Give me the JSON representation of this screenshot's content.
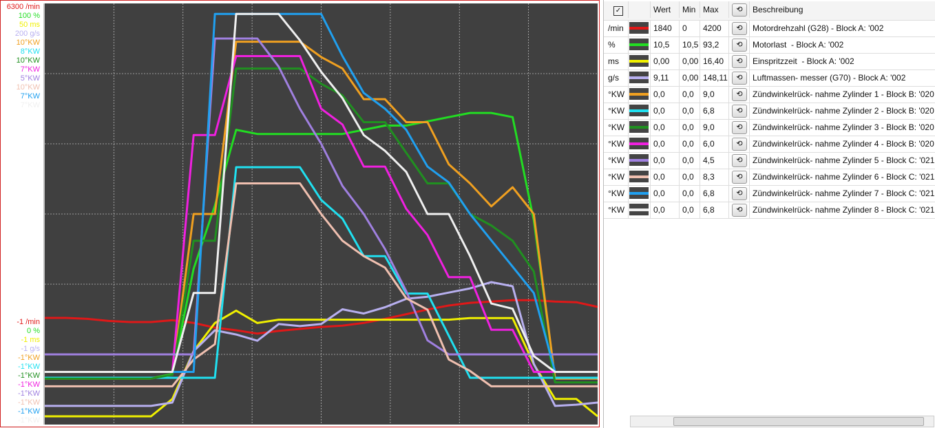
{
  "chart_data": {
    "type": "line",
    "grid": true,
    "series": [
      {
        "name": "Motordrehzahl (G28) - Block A: '002",
        "color": "#e01818",
        "ylim": [
          {
            "value": -1,
            "label": "-1 /min"
          },
          {
            "value": 6300,
            "label": "6300 /min"
          }
        ],
        "values": [
          1595,
          1595,
          1580,
          1550,
          1533,
          1533,
          1560,
          1520,
          1450,
          1410,
          1360,
          1400,
          1430,
          1460,
          1480,
          1520,
          1580,
          1650,
          1720,
          1780,
          1820,
          1840,
          1860,
          1860,
          1840,
          1830,
          1760
        ]
      },
      {
        "name": "Motorlast  - Block A: '002",
        "color": "#22dd22",
        "ylim": [
          {
            "value": 0,
            "label": "0 %"
          },
          {
            "value": 100,
            "label": "100 %"
          }
        ],
        "values": [
          11,
          11,
          11,
          11,
          11,
          11,
          12,
          37,
          52,
          70,
          69,
          69,
          69,
          69,
          69,
          70,
          71,
          71,
          72,
          73,
          74,
          74,
          73,
          48.5,
          11,
          11,
          11
        ]
      },
      {
        "name": "Einspritzzeit  - Block A: '002",
        "color": "#f0f000",
        "ylim": [
          {
            "value": -1,
            "label": "-1 ms"
          },
          {
            "value": 50,
            "label": "50 ms"
          }
        ],
        "values": [
          0,
          0,
          0,
          0,
          0,
          0,
          2.1,
          7.9,
          11.3,
          12.8,
          11.3,
          11.7,
          11.7,
          11.7,
          11.7,
          11.7,
          11.7,
          11.7,
          11.7,
          11.7,
          11.9,
          11.9,
          11.9,
          6.3,
          2.1,
          2.1,
          0
        ]
      },
      {
        "name": "Luftmassen- messer (G70) - Block A: '002",
        "color": "#b8b0f0",
        "ylim": [
          {
            "value": -1,
            "label": "-1 g/s"
          },
          {
            "value": 200,
            "label": "200 g/s"
          }
        ],
        "values": [
          7.9,
          7.9,
          7.9,
          7.9,
          7.9,
          7.9,
          9.5,
          34,
          44,
          42,
          39,
          47,
          46,
          47,
          54,
          52,
          55,
          59,
          60,
          62,
          64,
          67,
          65,
          28,
          7.9,
          8.5,
          9.5
        ]
      },
      {
        "name": "Zündwinkelrück- nahme Zylinder 1 - Block B: '020",
        "color": "#f0a020",
        "ylim": [
          {
            "value": -1,
            "label": "-1°KW"
          },
          {
            "value": 10,
            "label": "10°KW"
          }
        ],
        "values": [
          0.2,
          0.2,
          0.2,
          0.2,
          0.2,
          0.2,
          0.3,
          4.5,
          4.5,
          9,
          9,
          9,
          9,
          8.6,
          8.3,
          7.5,
          7.5,
          6.9,
          6.9,
          5.8,
          5.3,
          4.7,
          5.2,
          4.5,
          0.2,
          0.2,
          0.2
        ]
      },
      {
        "name": "Zündwinkelrück- nahme Zylinder 2 - Block B: '020",
        "color": "#20e0f0",
        "ylim": [
          {
            "value": -1,
            "label": "-1°KW"
          },
          {
            "value": 8,
            "label": "8°KW"
          }
        ],
        "values": [
          0,
          0,
          0,
          0,
          0,
          0,
          0,
          0,
          0,
          4.5,
          4.5,
          4.5,
          4.5,
          3.8,
          3.4,
          2.6,
          2.6,
          1.8,
          1.8,
          0.9,
          0,
          0,
          0,
          0,
          0,
          0,
          0
        ]
      },
      {
        "name": "Zündwinkelrück- nahme Zylinder 3 - Block B: '020",
        "color": "#209020",
        "ylim": [
          {
            "value": -1,
            "label": "-1°KW"
          },
          {
            "value": 10,
            "label": "10°KW"
          }
        ],
        "values": [
          0.2,
          0.2,
          0.2,
          0.2,
          0.2,
          0.2,
          0.3,
          3.8,
          3.8,
          8.3,
          8.3,
          8.3,
          8.3,
          7.9,
          7.6,
          6.9,
          6.9,
          6.1,
          5.3,
          5.3,
          4.5,
          4.2,
          3.8,
          3,
          0.1,
          0.1,
          0.1
        ]
      },
      {
        "name": "Zündwinkelrück- nahme Zylinder 4 - Block B: '020",
        "color": "#f020e0",
        "ylim": [
          {
            "value": -1,
            "label": "-1°KW"
          },
          {
            "value": 7,
            "label": "7°KW"
          }
        ],
        "values": [
          0,
          0,
          0,
          0,
          0,
          0,
          0,
          4.5,
          4.5,
          6,
          6,
          6,
          6,
          5,
          4.7,
          3.9,
          3.9,
          3.1,
          2.6,
          1.8,
          1.8,
          0.8,
          0.8,
          0,
          0,
          0,
          0
        ]
      },
      {
        "name": "Zündwinkelrück- nahme Zylinder 5 - Block C: '021",
        "color": "#a080e0",
        "ylim": [
          {
            "value": -1,
            "label": "-1°KW"
          },
          {
            "value": 5,
            "label": "5°KW"
          }
        ],
        "values": [
          0,
          0,
          0,
          0,
          0,
          0,
          0,
          0,
          4.5,
          4.5,
          4.5,
          4.1,
          3.5,
          3,
          2.4,
          2,
          1.5,
          0.9,
          0.2,
          0,
          0,
          0,
          0,
          0,
          0,
          0,
          0
        ]
      },
      {
        "name": "Zündwinkelrück- nahme Zylinder 6 - Block C: '021",
        "color": "#f0c0b0",
        "ylim": [
          {
            "value": -1,
            "label": "-1°KW"
          },
          {
            "value": 10,
            "label": "10°KW"
          }
        ],
        "values": [
          0,
          0,
          0,
          0,
          0,
          0,
          0,
          0.7,
          1.1,
          5.3,
          5.3,
          5.3,
          5.3,
          4.5,
          3.8,
          3.4,
          3.1,
          2.3,
          2,
          0.7,
          0.4,
          0,
          0,
          0,
          0,
          0,
          0
        ]
      },
      {
        "name": "Zündwinkelrück- nahme Zylinder 7 - Block C: '021",
        "color": "#20a0f0",
        "ylim": [
          {
            "value": -1,
            "label": "-1°KW"
          },
          {
            "value": 7,
            "label": "7°KW"
          }
        ],
        "values": [
          0,
          0,
          0,
          0,
          0,
          0,
          0,
          0,
          6.8,
          6.8,
          6.8,
          6.8,
          6.8,
          6.8,
          6,
          5.3,
          5,
          4.6,
          3.9,
          3.6,
          3,
          2.5,
          2,
          1.5,
          0,
          0,
          0
        ]
      },
      {
        "name": "Zündwinkelrück- nahme Zylinder 8 - Block C: '021",
        "color": "#f0f0f0",
        "ylim": [
          {
            "value": -1,
            "label": "-1°KW"
          },
          {
            "value": 7,
            "label": "7°KW"
          }
        ],
        "values": [
          0,
          0,
          0,
          0,
          0,
          0,
          0,
          1.5,
          1.5,
          6.8,
          6.8,
          6.8,
          6.3,
          5.7,
          5.2,
          4.5,
          4.2,
          3.8,
          3,
          3,
          2.2,
          1.3,
          1.2,
          0.3,
          0,
          0,
          0
        ]
      }
    ]
  },
  "table": {
    "header": [
      "Wert",
      "Min",
      "Max",
      "Beschreibung"
    ],
    "rows": [
      [
        "/min",
        "1840",
        "0",
        "4200"
      ],
      [
        "%",
        "10,5",
        "10,5",
        "93,2"
      ],
      [
        "ms",
        "0,00",
        "0,00",
        "16,40"
      ],
      [
        "g/s",
        "9,11",
        "0,00",
        "148,11"
      ],
      [
        "°KW",
        "0,0",
        "0,0",
        "9,0"
      ],
      [
        "°KW",
        "0,0",
        "0,0",
        "6,8"
      ],
      [
        "°KW",
        "0,0",
        "0,0",
        "9,0"
      ],
      [
        "°KW",
        "0,0",
        "0,0",
        "6,0"
      ],
      [
        "°KW",
        "0,0",
        "0,0",
        "4,5"
      ],
      [
        "°KW",
        "0,0",
        "0,0",
        "8,3"
      ],
      [
        "°KW",
        "0,0",
        "0,0",
        "6,8"
      ],
      [
        "°KW",
        "0,0",
        "0,0",
        "6,8"
      ]
    ]
  }
}
